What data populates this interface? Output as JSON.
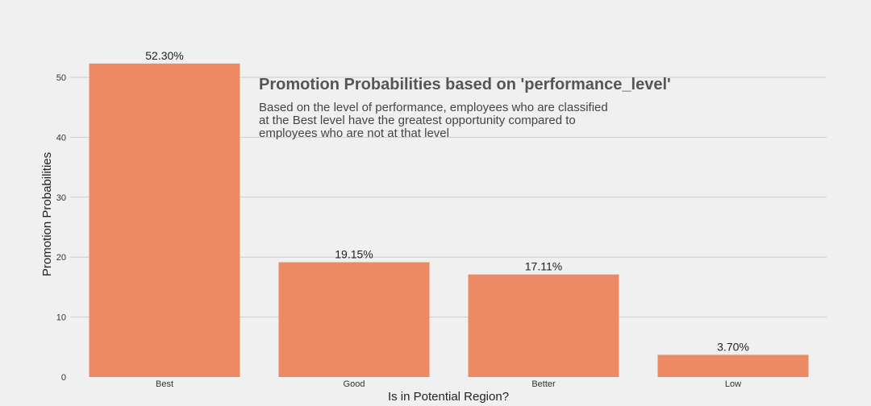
{
  "chart_data": {
    "type": "bar",
    "categories": [
      "Best",
      "Good",
      "Better",
      "Low"
    ],
    "values": [
      52.3,
      19.15,
      17.11,
      3.7
    ],
    "data_labels": [
      "52.30%",
      "19.15%",
      "17.11%",
      "3.70%"
    ],
    "title": "",
    "xlabel": "Is in Potential Region?",
    "ylabel": "Promotion Probabilities",
    "ylim": [
      0,
      55
    ],
    "yticks": [
      0,
      10,
      20,
      30,
      40,
      50
    ],
    "grid": "horizontal",
    "bar_color": "#eb8a65",
    "background_color": "#f0f0f0",
    "grid_color": "#cbcbcb",
    "annotation": {
      "title": "Promotion Probabilities based on 'performance_level'",
      "lines": [
        "Based on the level of performance, employees who are classified",
        "at the Best level have the greatest opportunity compared to",
        "employees who are not at that level"
      ]
    }
  }
}
